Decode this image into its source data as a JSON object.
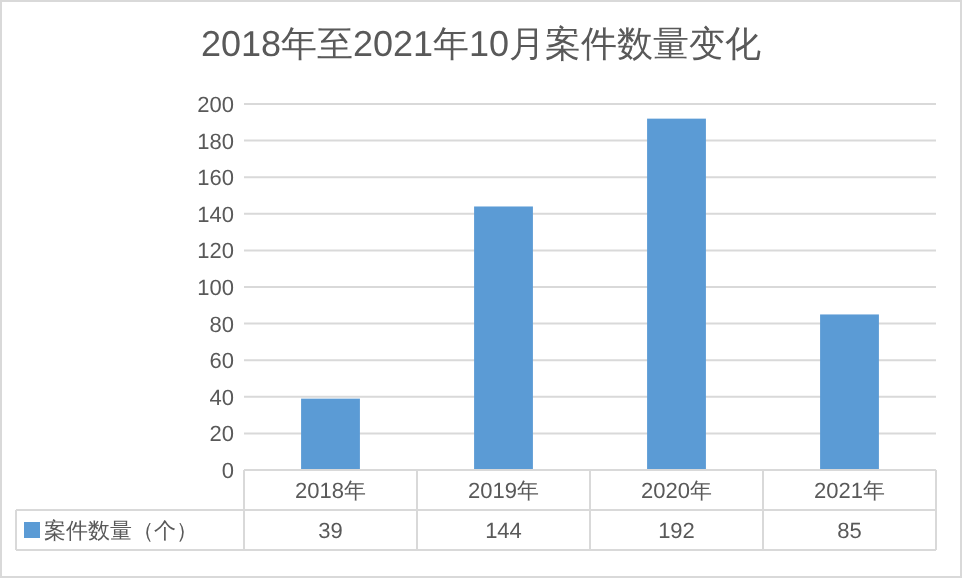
{
  "chart_data": {
    "type": "bar",
    "title": "2018年至2021年10月案件数量变化",
    "categories": [
      "2018年",
      "2019年",
      "2020年",
      "2021年"
    ],
    "series": [
      {
        "name": "案件数量（个）",
        "color": "#5b9bd5",
        "values": [
          39,
          144,
          192,
          85
        ]
      }
    ],
    "ylim": [
      0,
      200
    ],
    "yticks": [
      0,
      20,
      40,
      60,
      80,
      100,
      120,
      140,
      160,
      180,
      200
    ],
    "grid": "y",
    "data_labels": true,
    "legend": "bottom"
  }
}
